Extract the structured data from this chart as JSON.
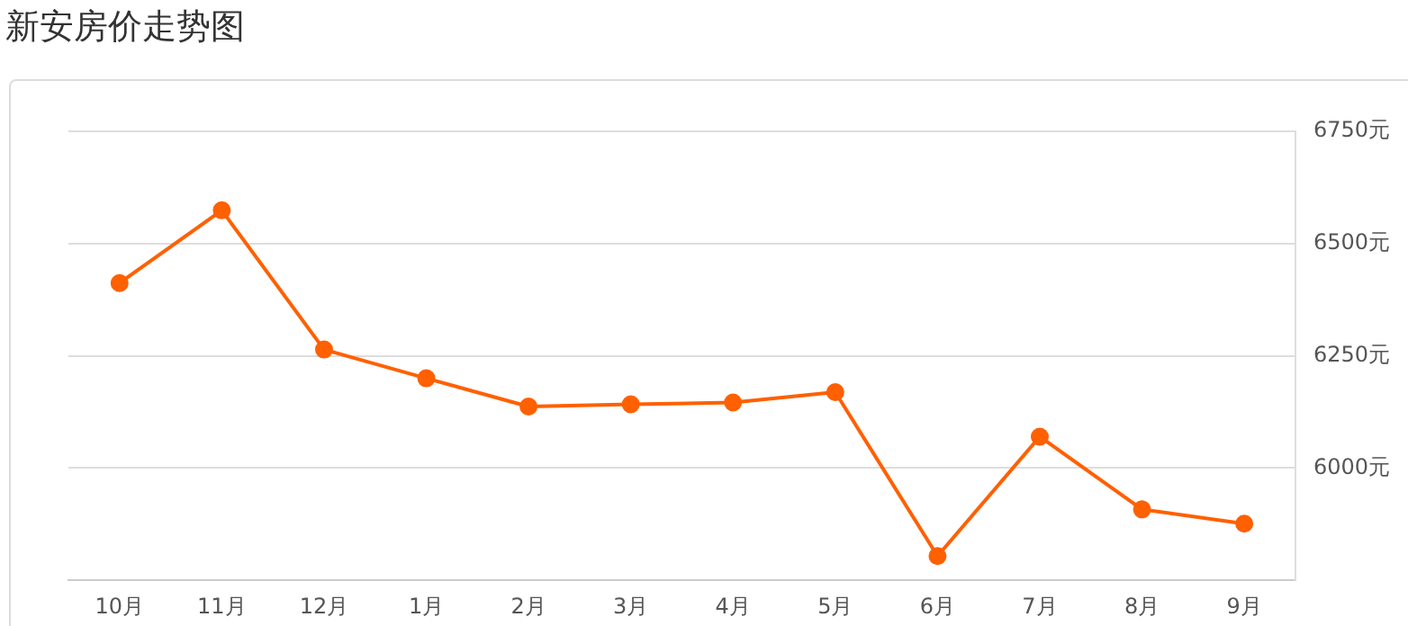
{
  "chart_data": {
    "type": "line",
    "title": "新安房价走势图",
    "categories": [
      "10月",
      "11月",
      "12月",
      "1月",
      "2月",
      "3月",
      "4月",
      "5月",
      "6月",
      "7月",
      "8月",
      "9月"
    ],
    "series": [
      {
        "color": "#ff6000",
        "values": [
          6412,
          6574,
          6264,
          6200,
          6137,
          6142,
          6146,
          6169,
          5804,
          6070,
          5908,
          5876
        ]
      }
    ],
    "ylim": [
      5750,
      6750
    ],
    "yticks": [
      {
        "value": 6000,
        "label": "6000元"
      },
      {
        "value": 6250,
        "label": "6250元"
      },
      {
        "value": 6500,
        "label": "6500元"
      },
      {
        "value": 6750,
        "label": "6750元"
      }
    ],
    "grid": "y",
    "legend": false,
    "marker": "circle",
    "line_style": "solid"
  }
}
